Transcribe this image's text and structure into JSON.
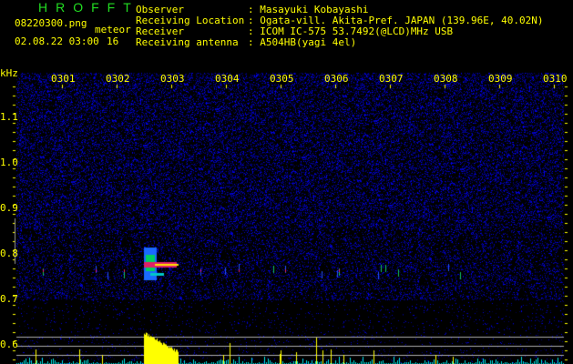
{
  "app": {
    "title": "HROFFT"
  },
  "file": {
    "name": "08220300.png",
    "datetime": "02.08.22 03:00"
  },
  "meteor": {
    "label": "meteor",
    "count": "16"
  },
  "info": [
    {
      "key": "Observer",
      "value": "Masayuki Kobayashi"
    },
    {
      "key": "Receiving Location",
      "value": "Ogata-vill. Akita-Pref. JAPAN (139.96E, 40.02N)"
    },
    {
      "key": "Receiver",
      "value": "ICOM IC-575 53.7492(@LCD)MHz USB"
    },
    {
      "key": "Receiving antenna",
      "value": "A504HB(yagi 4el)"
    }
  ],
  "axis": {
    "unit": "kHz",
    "y_ticks": [
      "1.1",
      "1.0",
      "0.9",
      "0.8",
      "0.7",
      "0.6"
    ],
    "x_ticks": [
      "0301",
      "0302",
      "0303",
      "0304",
      "0305",
      "0306",
      "0307",
      "0308",
      "0309",
      "0310"
    ]
  },
  "colors": {
    "text": "#ffff00",
    "title": "#22dd22",
    "noise": "#1a1aff",
    "histogram": "#00e5e5",
    "meteor_bar": "#ffff00"
  }
}
